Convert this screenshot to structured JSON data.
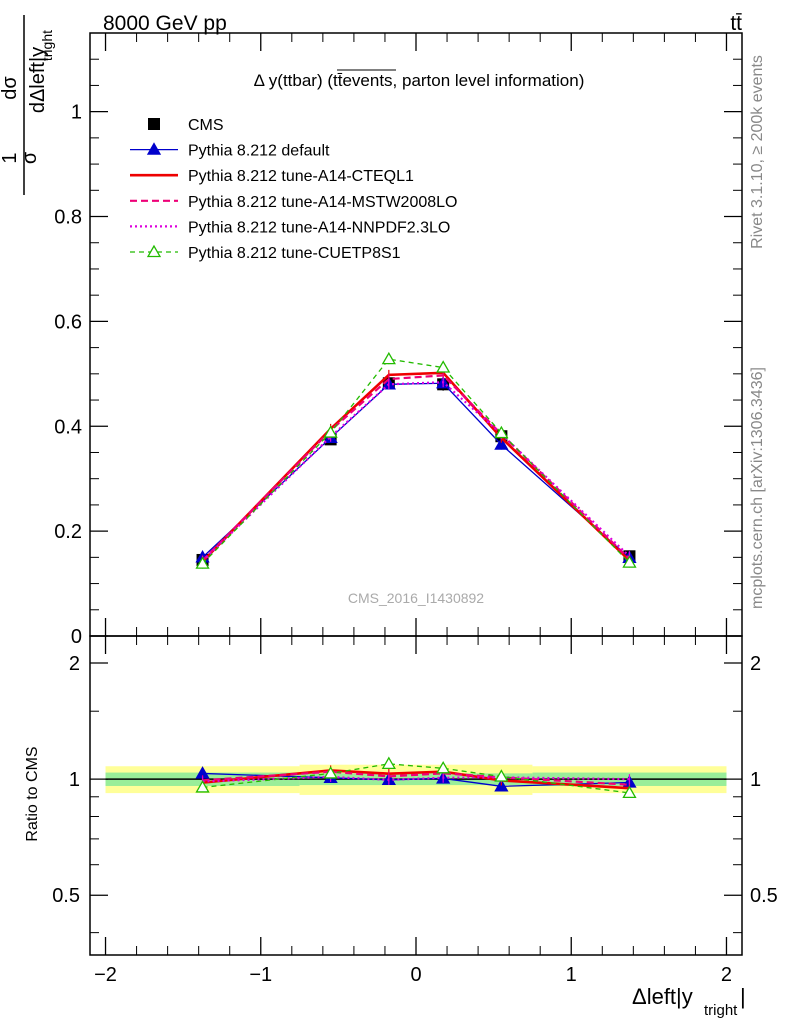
{
  "header": {
    "energy_label": "8000 GeV pp",
    "process_label": "tt̄",
    "title": "Δ y(ttbar) (tt̄events, parton level information)",
    "watermark": "CMS_2016_I1430892",
    "rivet_label": "Rivet 3.1.10, ≥ 200k events",
    "site_label": "mcplots.cern.ch [arXiv:1306.3436]"
  },
  "axes": {
    "ylabel_top_num": "1",
    "ylabel_top_den": "σ",
    "ylabel_top_dsig": "dσ",
    "ylabel_top_rest": "dΔleft|y",
    "ylabel_top_sub": "tright",
    "ylabel_ratio": "Ratio to CMS",
    "xlabel_main": "Δleft|y",
    "xlabel_sub": "tright",
    "xlabel_end": "|",
    "main_yticks": [
      "0",
      "0.2",
      "0.4",
      "0.6",
      "0.8",
      "1"
    ],
    "ratio_yticks": [
      "0.5",
      "1",
      "2"
    ],
    "xticks": [
      "−2",
      "−1",
      "0",
      "1",
      "2"
    ]
  },
  "legend": [
    {
      "label": "CMS",
      "color": "#000000",
      "style": "data"
    },
    {
      "label": "Pythia 8.212 default",
      "color": "#0000cc",
      "style": "solid-triangle"
    },
    {
      "label": "Pythia 8.212 tune-A14-CTEQL1",
      "color": "#ee0000",
      "style": "solid-thick"
    },
    {
      "label": "Pythia 8.212 tune-A14-MSTW2008LO",
      "color": "#ee0077",
      "style": "dashed"
    },
    {
      "label": "Pythia 8.212 tune-A14-NNPDF2.3LO",
      "color": "#dd00dd",
      "style": "dotted"
    },
    {
      "label": "Pythia 8.212 tune-CUETP8S1",
      "color": "#22bb00",
      "style": "dashed-open-triangle"
    }
  ],
  "chart_data": {
    "type": "line",
    "x": [
      -1.375,
      -0.55,
      -0.175,
      0.175,
      0.55,
      1.375
    ],
    "xlim": [
      -2.1,
      2.1
    ],
    "ylim": [
      0,
      1.15
    ],
    "ratio_ylim": [
      0.35,
      2.35
    ],
    "data": {
      "name": "CMS",
      "values": [
        0.145,
        0.375,
        0.482,
        0.48,
        0.381,
        0.152
      ],
      "errors": [
        0.006,
        0.01,
        0.012,
        0.012,
        0.01,
        0.006
      ]
    },
    "band_edges": [
      -2.0,
      -0.75,
      0.0,
      0.75,
      2.0
    ],
    "band_inner": [
      0.04,
      0.035,
      0.035,
      0.04
    ],
    "band_outer": [
      0.08,
      0.09,
      0.09,
      0.08
    ],
    "series": [
      {
        "name": "Pythia 8.212 default",
        "values": [
          0.15,
          0.378,
          0.48,
          0.482,
          0.365,
          0.149
        ]
      },
      {
        "name": "Pythia 8.212 tune-A14-CTEQL1",
        "values": [
          0.142,
          0.395,
          0.498,
          0.502,
          0.378,
          0.144
        ]
      },
      {
        "name": "Pythia 8.212 tune-A14-MSTW2008LO",
        "values": [
          0.144,
          0.392,
          0.49,
          0.497,
          0.385,
          0.147
        ]
      },
      {
        "name": "Pythia 8.212 tune-A14-NNPDF2.3LO",
        "values": [
          0.143,
          0.38,
          0.48,
          0.484,
          0.385,
          0.152
        ]
      },
      {
        "name": "Pythia 8.212 tune-CUETP8S1",
        "values": [
          0.138,
          0.388,
          0.528,
          0.512,
          0.387,
          0.14
        ]
      }
    ]
  }
}
